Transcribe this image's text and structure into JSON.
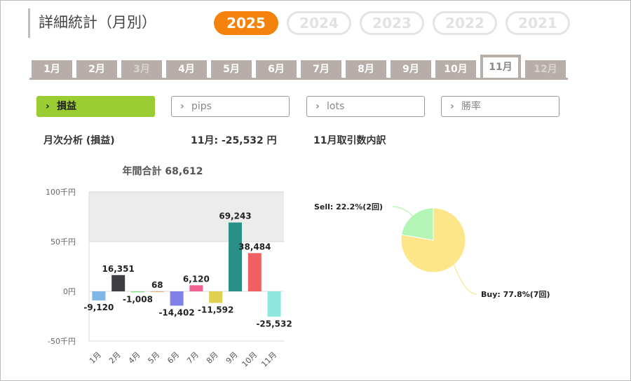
{
  "page_title": "詳細統計（月別）",
  "years": [
    {
      "label": "2025",
      "active": true
    },
    {
      "label": "2024",
      "active": false
    },
    {
      "label": "2023",
      "active": false
    },
    {
      "label": "2022",
      "active": false
    },
    {
      "label": "2021",
      "active": false
    }
  ],
  "months": [
    {
      "label": "1月",
      "state": "normal"
    },
    {
      "label": "2月",
      "state": "normal"
    },
    {
      "label": "3月",
      "state": "disabled"
    },
    {
      "label": "4月",
      "state": "normal"
    },
    {
      "label": "5月",
      "state": "normal"
    },
    {
      "label": "6月",
      "state": "normal"
    },
    {
      "label": "7月",
      "state": "normal"
    },
    {
      "label": "8月",
      "state": "normal"
    },
    {
      "label": "9月",
      "state": "normal"
    },
    {
      "label": "10月",
      "state": "normal"
    },
    {
      "label": "11月",
      "state": "active"
    },
    {
      "label": "12月",
      "state": "disabled"
    }
  ],
  "filters": [
    {
      "label": "損益",
      "active": true
    },
    {
      "label": "pips",
      "active": false
    },
    {
      "label": "lots",
      "active": false
    },
    {
      "label": "勝率",
      "active": false
    }
  ],
  "chevron_icon": "chevron-right-icon",
  "summary": {
    "analysis_label": "月次分析 (損益)",
    "month_result": "11月:  -25,532 円",
    "breakdown_label": "11月取引数内訳"
  },
  "colors": {
    "accent": "#f5820d",
    "active_filter": "#9acd32",
    "tab": "#b7aeaa"
  },
  "chart_data": [
    {
      "type": "bar",
      "title": "年間合計 68,612",
      "categories": [
        "1月",
        "2月",
        "4月",
        "5月",
        "6月",
        "7月",
        "8月",
        "9月",
        "10月",
        "11月"
      ],
      "values": [
        -9120,
        16351,
        -1008,
        68,
        -14402,
        6120,
        -11592,
        69243,
        38484,
        -25532
      ],
      "value_labels": [
        "-9,120",
        "16,351",
        "-1,008",
        "68",
        "-14,402",
        "6,120",
        "-11,592",
        "69,243",
        "38,484",
        "-25,532"
      ],
      "colors": [
        "#7eb6e8",
        "#3e3e42",
        "#8fe08a",
        "#f0a35a",
        "#8080e8",
        "#f06292",
        "#e0d050",
        "#2a9087",
        "#f06060",
        "#8ee8e0"
      ],
      "yticks": [
        {
          "value": 100000,
          "label": "100千円"
        },
        {
          "value": 50000,
          "label": "50千円"
        },
        {
          "value": 0,
          "label": "0円"
        },
        {
          "value": -50000,
          "label": "-50千円"
        }
      ],
      "ylim": [
        -50000,
        100000
      ],
      "grid": true
    },
    {
      "type": "pie",
      "slices": [
        {
          "name": "Buy",
          "value": 77.8,
          "label": "Buy: 77.8%(7回)",
          "color": "#fde68a"
        },
        {
          "name": "Sell",
          "value": 22.2,
          "label": "Sell: 22.2%(2回)",
          "color": "#b2f5b4"
        }
      ]
    }
  ]
}
